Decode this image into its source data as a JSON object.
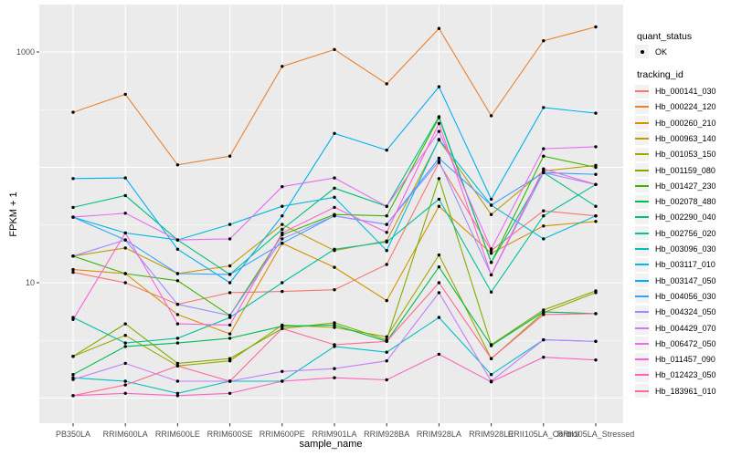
{
  "figure": {
    "panel_background": "#EBEBEB",
    "grid_color": "#FFFFFF",
    "tick_color": "#333333",
    "axis_text_color": "#4D4D4D",
    "legend_key_background": "#F2F2F2",
    "point_color": "#000000"
  },
  "chart_data": {
    "type": "line",
    "title": "",
    "xlabel": "sample_name",
    "ylabel": "FPKM + 1",
    "x_categories": [
      "PB350LA",
      "RRIM600LA",
      "RRIM600LE",
      "RRIM600SE",
      "RRIM600PE",
      "RRIM901LA",
      "RRIM928BA",
      "RRIM928LA",
      "RRIM928LE",
      "RRII105LA_Control",
      "RRII105LA_Stressed"
    ],
    "y_scale": {
      "type": "log10",
      "labeled_ticks": [
        10,
        1000
      ],
      "major_gridlines": [
        1,
        10,
        100,
        1000
      ],
      "minor_gridlines": [
        3.162,
        31.62,
        316.2
      ],
      "domain": [
        0.6,
        2500
      ]
    },
    "grid": "on",
    "legend_position": "right",
    "legend": {
      "quant_status": {
        "title": "quant_status",
        "items": [
          {
            "label": "OK",
            "marker": "point",
            "color": "#000000"
          }
        ]
      },
      "tracking_id_title": "tracking_id"
    },
    "series": [
      {
        "name": "Hb_000141_030",
        "color": "#F8766D",
        "values": [
          12.3,
          10,
          6.5,
          8.2,
          8.4,
          8.7,
          14.4,
          110,
          19,
          42,
          38
        ]
      },
      {
        "name": "Hb_000224_120",
        "color": "#EA8331",
        "values": [
          300,
          430,
          105,
          125,
          750,
          1050,
          530,
          1600,
          280,
          1250,
          1650
        ]
      },
      {
        "name": "Hb_000260_210",
        "color": "#D89000",
        "values": [
          13,
          12,
          5.3,
          3.6,
          22,
          13.6,
          7,
          46,
          18,
          31,
          34
        ]
      },
      {
        "name": "Hb_000963_140",
        "color": "#C09B00",
        "values": [
          17,
          20,
          12,
          14,
          32,
          19,
          23,
          173,
          39,
          93,
          104
        ]
      },
      {
        "name": "Hb_001053_150",
        "color": "#A3A500",
        "values": [
          2.3,
          3.5,
          1.9,
          2.1,
          4.3,
          4.1,
          3.4,
          17.4,
          2.2,
          5.5,
          8.2
        ]
      },
      {
        "name": "Hb_001159_080",
        "color": "#7CAE00",
        "values": [
          2.3,
          4.4,
          2.0,
          2.2,
          4.0,
          4.5,
          3.2,
          80,
          2.9,
          5.8,
          8.5
        ]
      },
      {
        "name": "Hb_001427_230",
        "color": "#39B600",
        "values": [
          17,
          12,
          10.4,
          5.2,
          26,
          39,
          38,
          270,
          15,
          125,
          100
        ]
      },
      {
        "name": "Hb_002078_480",
        "color": "#00BB4E",
        "values": [
          1.6,
          2.8,
          3.0,
          3.3,
          4.2,
          4.3,
          3.1,
          13.7,
          2.85,
          5.6,
          5.4
        ]
      },
      {
        "name": "Hb_002290_040",
        "color": "#00BF7D",
        "values": [
          45,
          57,
          23.5,
          11.8,
          29,
          66,
          46,
          275,
          15,
          90,
          46
        ]
      },
      {
        "name": "Hb_002756_020",
        "color": "#00C1A3",
        "values": [
          5.0,
          3.0,
          3.3,
          5.0,
          10,
          19.5,
          22.5,
          53,
          8.3,
          38,
          71
        ]
      },
      {
        "name": "Hb_003096_030",
        "color": "#00BFC4",
        "values": [
          1.5,
          1.4,
          1.1,
          1.4,
          1.4,
          2.8,
          2.5,
          5.0,
          1.6,
          3.2,
          3.1
        ]
      },
      {
        "name": "Hb_003117_010",
        "color": "#00BAE0",
        "values": [
          37,
          27,
          23.5,
          32,
          46,
          55,
          19,
          175,
          47,
          24,
          38
        ]
      },
      {
        "name": "Hb_003147_050",
        "color": "#00B0F6",
        "values": [
          80,
          81,
          19.5,
          10,
          38,
          197,
          141,
          500,
          53,
          330,
          295
        ]
      },
      {
        "name": "Hb_004056_030",
        "color": "#35A2FF",
        "values": [
          37,
          23.5,
          12,
          11.8,
          22,
          38,
          32,
          120,
          47,
          90,
          87
        ]
      },
      {
        "name": "Hb_004324_050",
        "color": "#9590FF",
        "values": [
          17,
          23.5,
          6.5,
          5.2,
          24,
          38,
          32,
          113,
          11.7,
          90,
          71
        ]
      },
      {
        "name": "Hb_004429_070",
        "color": "#C77CFF",
        "values": [
          1.45,
          2.0,
          1.4,
          1.4,
          1.7,
          1.8,
          2.1,
          8.2,
          1.4,
          3.2,
          3.1
        ]
      },
      {
        "name": "Hb_006472_050",
        "color": "#E76BF3",
        "values": [
          37,
          40,
          23.5,
          24,
          68,
          81,
          46,
          205,
          19.6,
          145,
          151
        ]
      },
      {
        "name": "Hb_011457_090",
        "color": "#FA62DB",
        "values": [
          4.8,
          27,
          4.4,
          4.3,
          27,
          45,
          27.3,
          240,
          11.7,
          97,
          71
        ]
      },
      {
        "name": "Hb_012423_050",
        "color": "#FF62BC",
        "values": [
          1.05,
          1.1,
          1.05,
          1.1,
          1.4,
          1.5,
          1.44,
          2.4,
          1.38,
          2.26,
          2.14
        ]
      },
      {
        "name": "Hb_183961_010",
        "color": "#FF6A98",
        "values": [
          1.05,
          1.3,
          1.9,
          1.4,
          4.0,
          2.9,
          3.1,
          10,
          2.2,
          5.3,
          5.4
        ]
      }
    ]
  }
}
